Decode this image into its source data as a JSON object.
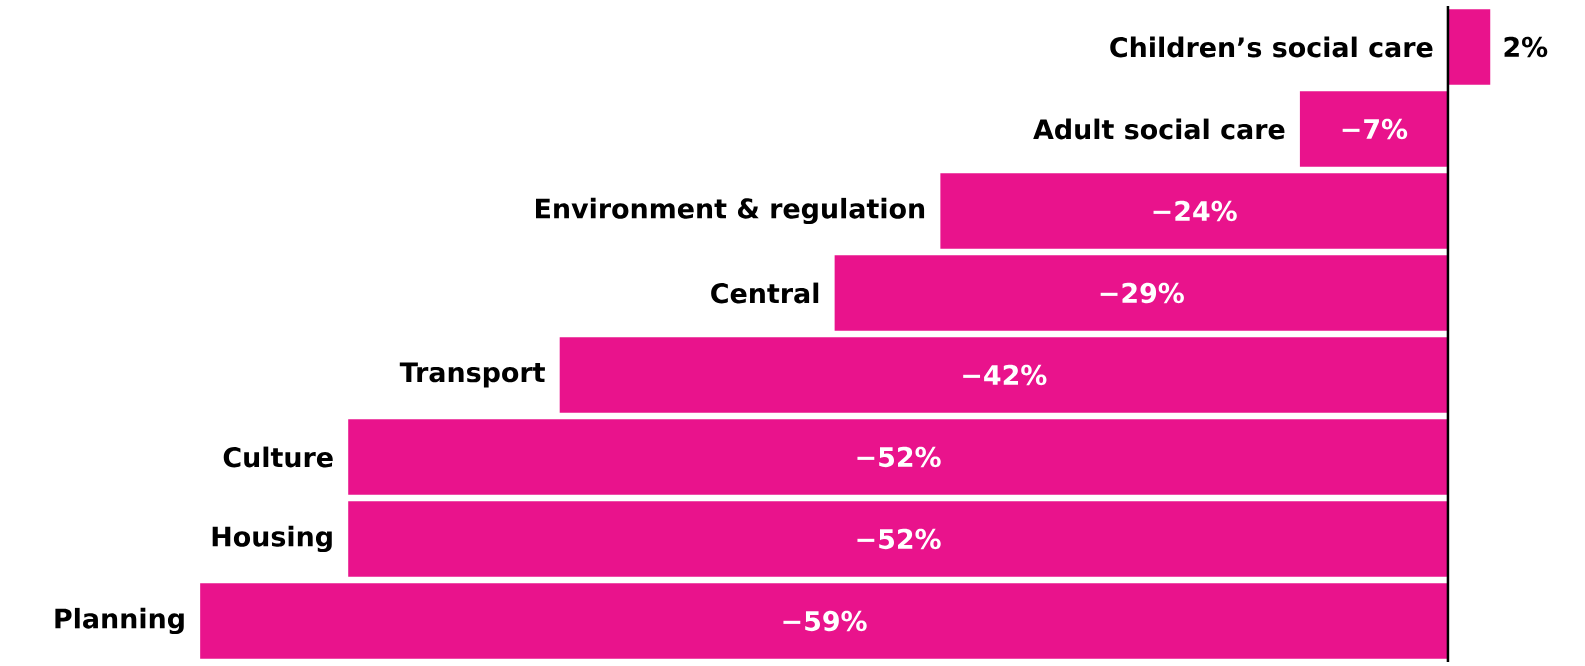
{
  "chart_data": {
    "type": "bar",
    "orientation": "horizontal",
    "categories": [
      "Children’s social care",
      "Adult social care",
      "Environment & regulation",
      "Central",
      "Transport",
      "Culture",
      "Housing",
      "Planning"
    ],
    "values": [
      2,
      -7,
      -24,
      -29,
      -42,
      -52,
      -52,
      -59
    ],
    "color": "#e9138c",
    "value_labels": [
      "2%",
      "−7%",
      "−24%",
      "−29%",
      "−42%",
      "−52%",
      "−52%",
      "−59%"
    ]
  }
}
